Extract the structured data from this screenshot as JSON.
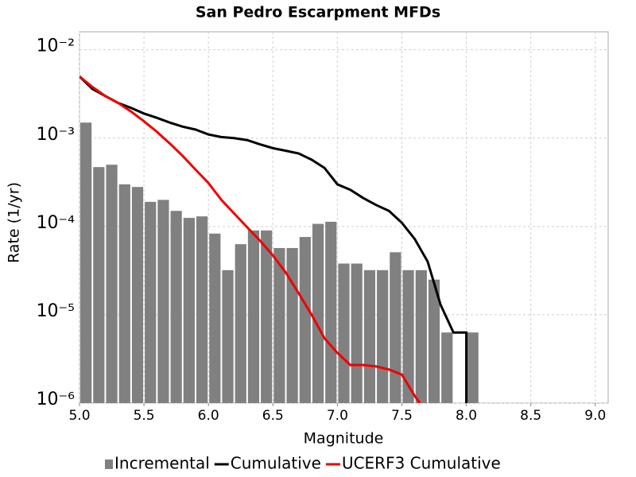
{
  "chart_data": {
    "type": "histogram",
    "title": "San Pedro Escarpment MFDs",
    "x_label": "Magnitude",
    "y_label": "Rate (1/yr)",
    "log_y": true,
    "grid": true,
    "legend": "bottom",
    "xlim": [
      5.0,
      9.1
    ],
    "ylim": [
      1e-06,
      0.016
    ],
    "xticks": [
      {
        "value": 5,
        "label": "5.0"
      },
      5.5,
      {
        "value": 6,
        "label": "6.0"
      },
      6.5,
      {
        "value": 7,
        "label": "7.0"
      },
      7.5,
      {
        "value": 8,
        "label": "8.0"
      },
      8.5,
      {
        "value": 9,
        "label": "9.0"
      }
    ],
    "yticks": [
      {
        "value": 1e-06,
        "label": "10⁻⁶"
      },
      {
        "value": 1e-05,
        "label": "10⁻⁵"
      },
      {
        "value": 0.0001,
        "label": "10⁻⁴"
      },
      {
        "value": 0.001,
        "label": "10⁻³"
      },
      {
        "value": 0.01,
        "label": "10⁻²"
      }
    ],
    "bins": [
      5.0,
      5.1,
      5.2,
      5.3,
      5.4,
      5.5,
      5.6,
      5.7,
      5.8,
      5.9,
      6.0,
      6.1,
      6.2,
      6.3,
      6.4,
      6.5,
      6.6,
      6.7,
      6.8,
      6.9,
      7.0,
      7.1,
      7.2,
      7.3,
      7.4,
      7.5,
      7.6,
      7.7,
      7.8,
      7.9,
      8.0,
      8.1
    ],
    "series": [
      {
        "name": "Incremental",
        "type": "histogram",
        "color": "#808080",
        "values": [
          0.0015,
          0.00047,
          0.0005,
          0.0003,
          0.00028,
          0.00019,
          0.0002,
          0.00015,
          0.000125,
          0.00013,
          8.3e-05,
          3.2e-05,
          6.3e-05,
          9e-05,
          9e-05,
          5.7e-05,
          5.7e-05,
          7.6e-05,
          0.000107,
          0.000113,
          3.8e-05,
          3.8e-05,
          3.2e-05,
          3.2e-05,
          5.1e-05,
          3.2e-05,
          3.2e-05,
          2.5e-05,
          6.3e-06,
          null,
          6.3e-06
        ]
      },
      {
        "name": "Cumulative",
        "type": "line",
        "color": "#000000",
        "x": [
          5.0,
          5.1,
          5.2,
          5.3,
          5.4,
          5.5,
          5.6,
          5.7,
          5.8,
          5.9,
          6.0,
          6.1,
          6.2,
          6.3,
          6.4,
          6.5,
          6.6,
          6.7,
          6.8,
          6.9,
          7.0,
          7.1,
          7.2,
          7.3,
          7.4,
          7.5,
          7.6,
          7.7,
          7.8,
          7.9,
          8.0,
          8.0
        ],
        "values": [
          0.005,
          0.0036,
          0.003,
          0.0025,
          0.0022,
          0.0019,
          0.0017,
          0.0015,
          0.00135,
          0.00125,
          0.0011,
          0.00103,
          0.001,
          0.00095,
          0.00085,
          0.00077,
          0.00072,
          0.00067,
          0.00057,
          0.00046,
          0.0003,
          0.00026,
          0.00021,
          0.000175,
          0.00015,
          0.00011,
          7.2e-05,
          4e-05,
          1.3e-05,
          6.3e-06,
          6.3e-06,
          1e-06
        ]
      },
      {
        "name": "UCERF3 Cumulative",
        "type": "line",
        "color": "#ee0000",
        "x": [
          5.0,
          5.1,
          5.2,
          5.3,
          5.4,
          5.5,
          5.6,
          5.7,
          5.8,
          5.9,
          6.0,
          6.1,
          6.2,
          6.3,
          6.4,
          6.5,
          6.6,
          6.7,
          6.8,
          6.9,
          7.0,
          7.1,
          7.2,
          7.3,
          7.4,
          7.5,
          7.6,
          7.64
        ],
        "values": [
          0.005,
          0.0038,
          0.003,
          0.0025,
          0.002,
          0.00155,
          0.00118,
          0.00087,
          0.00063,
          0.00044,
          0.00031,
          0.0002,
          0.00014,
          9.8e-05,
          6.9e-05,
          4.7e-05,
          3e-05,
          1.75e-05,
          1e-05,
          5.4e-06,
          3.7e-06,
          2.7e-06,
          2.7e-06,
          2.6e-06,
          2.4e-06,
          2.1e-06,
          1.2e-06,
          1e-06
        ]
      }
    ]
  }
}
